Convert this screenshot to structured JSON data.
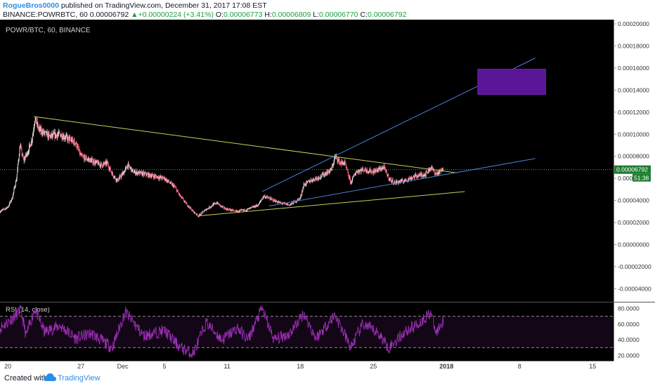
{
  "header": {
    "author": "RogueBros0000",
    "published": "published on TradingView.com, December 31, 2017 17:08 EST",
    "symbol_line": "BINANCE:POWRBTC, 60",
    "last": "0.00006792",
    "change": "+0.00000224 (+3.41%)",
    "o_label": "O:",
    "o_value": "0.00006773",
    "h_label": "H:",
    "h_value": "0.00006809",
    "l_label": "L:",
    "l_value": "0.00006770",
    "c_label": "C:",
    "c_value": "0.00006792"
  },
  "footer": {
    "created_with": "Created with",
    "brand": "TradingView"
  },
  "colors": {
    "background": "#000000",
    "axis_bg": "#ffffff",
    "candle_up": "#e8e8e8",
    "candle_down": "#ff5577",
    "yellow_line": "#c8cf58",
    "blue_line": "#4a7fd6",
    "rectangle": "#5b1597",
    "rsi_line": "#9b2fb5",
    "price_badge": "#1f7e2f",
    "price_line": "#6ab0a8"
  },
  "chart_data": {
    "type": "candlestick",
    "title": "POWR/BTC, 60, BINANCE",
    "y_ticks": [
      "0.00020000",
      "0.00018000",
      "0.00016000",
      "0.00014000",
      "0.00012000",
      "0.00010000",
      "0.00008000",
      "0.00006000",
      "0.00004000",
      "0.00002000",
      "0.00000000",
      "-0.00002000",
      "-0.00004000"
    ],
    "ylim": [
      -4.8e-05,
      0.0002
    ],
    "x_ticks": [
      "20",
      "27",
      "Dec",
      "5",
      "11",
      "18",
      "25",
      "2018",
      "8",
      "15"
    ],
    "xlim": [
      "2017-11-19 06:00",
      "2018-01-17 00:00"
    ],
    "current_price": "0.00006792",
    "countdown": "51:38",
    "price_path": [
      [
        "2017-11-19 06:00",
        3e-05
      ],
      [
        "2017-11-20 00:00",
        3.4e-05
      ],
      [
        "2017-11-20 10:00",
        4.2e-05
      ],
      [
        "2017-11-20 20:00",
        6e-05
      ],
      [
        "2017-11-21 04:00",
        9e-05
      ],
      [
        "2017-11-21 12:00",
        7.6e-05
      ],
      [
        "2017-11-21 22:00",
        8.4e-05
      ],
      [
        "2017-11-22 08:00",
        9.6e-05
      ],
      [
        "2017-11-22 14:00",
        0.000114
      ],
      [
        "2017-11-23 00:00",
        0.000104
      ],
      [
        "2017-11-24 00:00",
        9.8e-05
      ],
      [
        "2017-11-25 00:00",
        0.0001
      ],
      [
        "2017-11-26 12:00",
        9.2e-05
      ],
      [
        "2017-11-27 00:00",
        8e-05
      ],
      [
        "2017-11-28 00:00",
        7.6e-05
      ],
      [
        "2017-11-29 00:00",
        7.2e-05
      ],
      [
        "2017-11-29 12:00",
        7.4e-05
      ],
      [
        "2017-11-30 00:00",
        6.4e-05
      ],
      [
        "2017-11-30 12:00",
        5.8e-05
      ],
      [
        "2017-12-01 00:00",
        6.4e-05
      ],
      [
        "2017-12-01 12:00",
        7.2e-05
      ],
      [
        "2017-12-02 00:00",
        6.6e-05
      ],
      [
        "2017-12-03 00:00",
        6.4e-05
      ],
      [
        "2017-12-04 00:00",
        6.2e-05
      ],
      [
        "2017-12-05 00:00",
        6e-05
      ],
      [
        "2017-12-06 00:00",
        5.2e-05
      ],
      [
        "2017-12-06 12:00",
        4.4e-05
      ],
      [
        "2017-12-07 00:00",
        3.8e-05
      ],
      [
        "2017-12-07 18:00",
        3e-05
      ],
      [
        "2017-12-08 06:00",
        2.6e-05
      ],
      [
        "2017-12-09 00:00",
        3.2e-05
      ],
      [
        "2017-12-10 00:00",
        3.8e-05
      ],
      [
        "2017-12-10 12:00",
        3.4e-05
      ],
      [
        "2017-12-11 00:00",
        3.2e-05
      ],
      [
        "2017-12-12 00:00",
        3e-05
      ],
      [
        "2017-12-13 00:00",
        3.2e-05
      ],
      [
        "2017-12-14 00:00",
        3.6e-05
      ],
      [
        "2017-12-14 12:00",
        4.4e-05
      ],
      [
        "2017-12-15 00:00",
        4.2e-05
      ],
      [
        "2017-12-16 00:00",
        3.8e-05
      ],
      [
        "2017-12-17 00:00",
        3.6e-05
      ],
      [
        "2017-12-18 00:00",
        4.2e-05
      ],
      [
        "2017-12-18 08:00",
        5.4e-05
      ],
      [
        "2017-12-19 00:00",
        5.8e-05
      ],
      [
        "2017-12-20 00:00",
        6.2e-05
      ],
      [
        "2017-12-21 00:00",
        6.8e-05
      ],
      [
        "2017-12-21 08:00",
        8e-05
      ],
      [
        "2017-12-21 20:00",
        7.4e-05
      ],
      [
        "2017-12-22 06:00",
        7.4e-05
      ],
      [
        "2017-12-22 20:00",
        5.6e-05
      ],
      [
        "2017-12-23 08:00",
        6.6e-05
      ],
      [
        "2017-12-24 00:00",
        6.8e-05
      ],
      [
        "2017-12-25 00:00",
        6.6e-05
      ],
      [
        "2017-12-26 00:00",
        7e-05
      ],
      [
        "2017-12-26 12:00",
        6e-05
      ],
      [
        "2017-12-27 00:00",
        5.6e-05
      ],
      [
        "2017-12-28 00:00",
        5.8e-05
      ],
      [
        "2017-12-29 00:00",
        6.2e-05
      ],
      [
        "2017-12-30 00:00",
        6.4e-05
      ],
      [
        "2017-12-30 12:00",
        7e-05
      ],
      [
        "2017-12-31 00:00",
        6.4e-05
      ],
      [
        "2017-12-31 17:00",
        6.79e-05
      ]
    ],
    "drawings": [
      {
        "kind": "trendline",
        "color": "yellow",
        "from": [
          "2017-11-22 12:00",
          0.000116
        ],
        "to": [
          "2018-01-02 00:00",
          6.5e-05
        ]
      },
      {
        "kind": "trendline",
        "color": "yellow",
        "from": [
          "2017-12-08 06:00",
          2.6e-05
        ],
        "to": [
          "2018-01-02 18:00",
          4.8e-05
        ]
      },
      {
        "kind": "trendline",
        "color": "blue",
        "from": [
          "2017-12-14 08:00",
          4.8e-05
        ],
        "to": [
          "2018-01-09 12:00",
          0.000169
        ]
      },
      {
        "kind": "trendline",
        "color": "blue",
        "from": [
          "2017-12-15 00:00",
          3.5e-05
        ],
        "to": [
          "2018-01-09 12:00",
          7.8e-05
        ]
      },
      {
        "kind": "rectangle",
        "from": [
          "2018-01-04 00:00",
          0.000159
        ],
        "to": [
          "2018-01-10 12:00",
          0.000136
        ]
      }
    ],
    "rsi": {
      "label": "RSI (14, close)",
      "y_ticks": [
        "80.0000",
        "60.0000",
        "40.0000",
        "20.0000"
      ],
      "ylim": [
        15,
        85
      ],
      "bands": [
        70,
        30
      ],
      "path": [
        [
          "2017-11-19 06:00",
          55
        ],
        [
          "2017-11-20 12:00",
          68
        ],
        [
          "2017-11-21 06:00",
          78
        ],
        [
          "2017-11-21 18:00",
          45
        ],
        [
          "2017-11-22 14:00",
          80
        ],
        [
          "2017-11-23 12:00",
          50
        ],
        [
          "2017-11-25 00:00",
          58
        ],
        [
          "2017-11-26 12:00",
          42
        ],
        [
          "2017-11-28 00:00",
          48
        ],
        [
          "2017-11-30 00:00",
          30
        ],
        [
          "2017-12-01 06:00",
          76
        ],
        [
          "2017-12-03 00:00",
          45
        ],
        [
          "2017-12-05 00:00",
          52
        ],
        [
          "2017-12-06 12:00",
          30
        ],
        [
          "2017-12-07 18:00",
          22
        ],
        [
          "2017-12-09 00:00",
          62
        ],
        [
          "2017-12-10 12:00",
          40
        ],
        [
          "2017-12-12 00:00",
          55
        ],
        [
          "2017-12-13 00:00",
          40
        ],
        [
          "2017-12-14 08:00",
          80
        ],
        [
          "2017-12-15 12:00",
          40
        ],
        [
          "2017-12-17 00:00",
          48
        ],
        [
          "2017-12-18 08:00",
          74
        ],
        [
          "2017-12-19 12:00",
          42
        ],
        [
          "2017-12-21 08:00",
          72
        ],
        [
          "2017-12-22 20:00",
          30
        ],
        [
          "2017-12-24 00:00",
          60
        ],
        [
          "2017-12-25 12:00",
          48
        ],
        [
          "2017-12-26 12:00",
          30
        ],
        [
          "2017-12-28 00:00",
          50
        ],
        [
          "2017-12-29 12:00",
          62
        ],
        [
          "2017-12-30 12:00",
          76
        ],
        [
          "2017-12-31 00:00",
          48
        ],
        [
          "2017-12-31 17:00",
          66
        ]
      ]
    }
  }
}
